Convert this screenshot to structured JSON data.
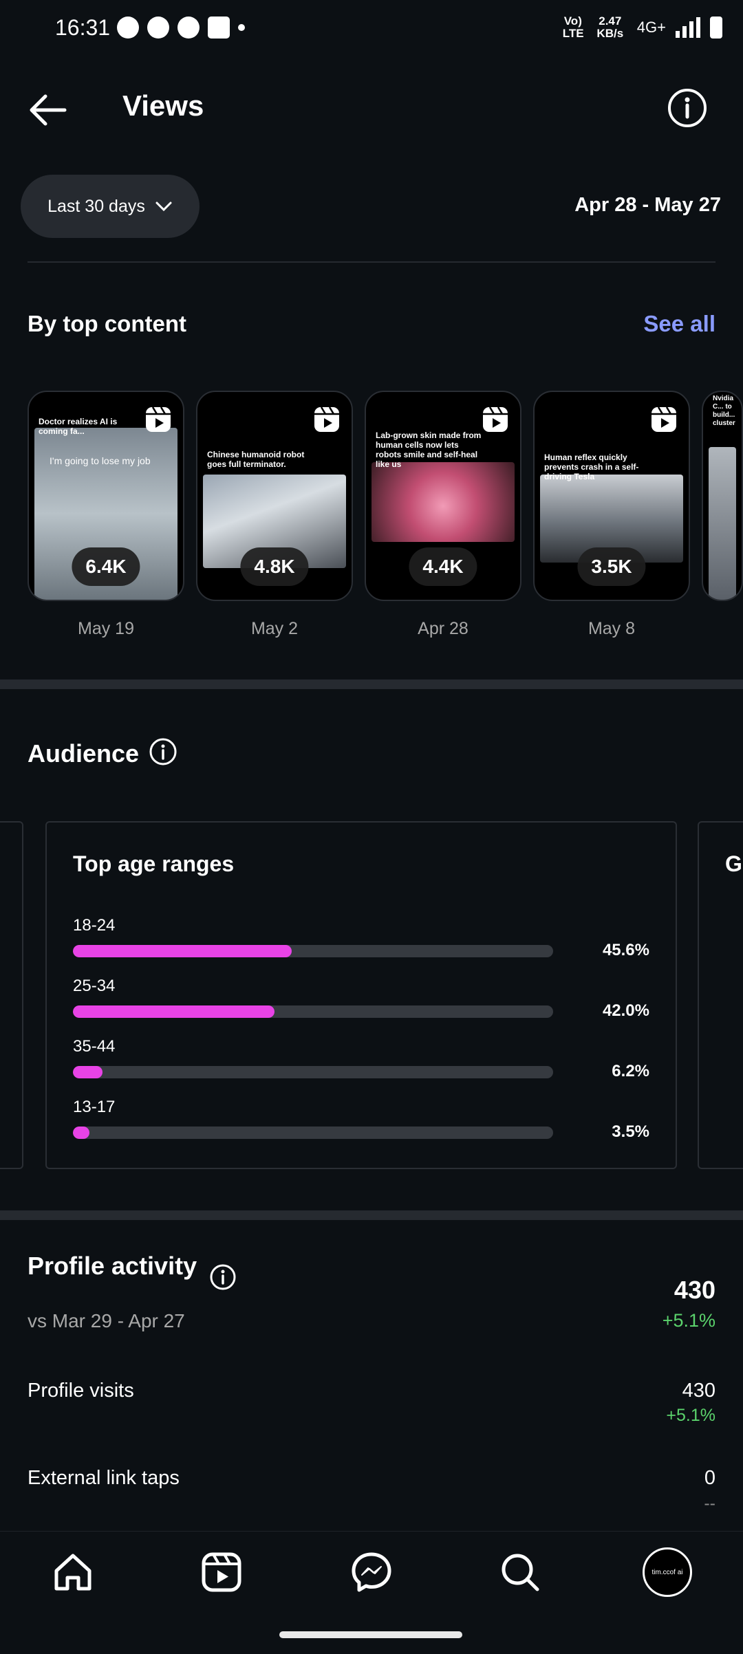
{
  "status": {
    "time": "16:31",
    "net_lte": "Vo) LTE",
    "speed": "2.47 KB/s",
    "network": "4G+"
  },
  "header": {
    "title": "Views",
    "range_label": "Last 30 days",
    "date_range": "Apr 28 - May 27"
  },
  "top_content": {
    "title": "By top content",
    "see_all": "See all",
    "items": [
      {
        "views": "6.4K",
        "date": "May 19",
        "caption": "Doctor realizes AI is coming fa...",
        "overlay": "I'm going to lose my job"
      },
      {
        "views": "4.8K",
        "date": "May 2",
        "caption": "Chinese humanoid robot goes full terminator.",
        "overlay": ""
      },
      {
        "views": "4.4K",
        "date": "Apr 28",
        "caption": "Lab-grown skin made from human cells now lets robots smile and self-heal like us",
        "overlay": ""
      },
      {
        "views": "3.5K",
        "date": "May 8",
        "caption": "Human reflex quickly prevents crash in a self-driving Tesla",
        "overlay": ""
      }
    ],
    "partial_caption": "Nvidia C... to build... cluster"
  },
  "audience": {
    "title": "Audience",
    "age_title": "Top age ranges",
    "next_panel_title": "Ge",
    "ranges": [
      {
        "label": "18-24",
        "pct_text": "45.6%",
        "value": 45.6
      },
      {
        "label": "25-34",
        "pct_text": "42.0%",
        "value": 42.0
      },
      {
        "label": "35-44",
        "pct_text": "6.2%",
        "value": 6.2
      },
      {
        "label": "13-17",
        "pct_text": "3.5%",
        "value": 3.5
      }
    ]
  },
  "profile_activity": {
    "title": "Profile activity",
    "total": "430",
    "change": "+5.1%",
    "vs": "vs Mar 29 - Apr 27",
    "rows": [
      {
        "label": "Profile visits",
        "value": "430",
        "change": "+5.1%"
      },
      {
        "label": "External link taps",
        "value": "0",
        "change": "--"
      }
    ]
  },
  "nav": {
    "avatar_text": "tim.ccof ai"
  },
  "colors": {
    "background": "#0c1014",
    "accent_link": "#8a9bff",
    "bar_fill": "#e843e6",
    "positive": "#5bd36c"
  }
}
